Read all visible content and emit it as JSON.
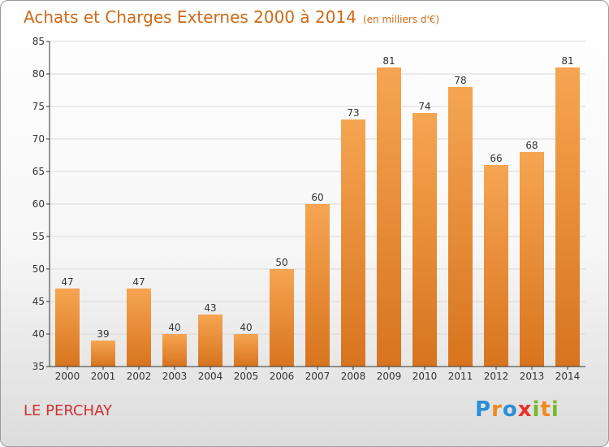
{
  "title": "Achats et Charges Externes 2000 à 2014",
  "unit": "(en milliers d'€)",
  "place": "LE PERCHAY",
  "logo": {
    "letters": [
      "P",
      "r",
      "o",
      "x",
      "i",
      "t",
      "i"
    ],
    "colors": [
      "#2a8fd6",
      "#f08a1e",
      "#2a8fd6",
      "#e8332a",
      "#7ab82b",
      "#f08a1e",
      "#7ab82b"
    ]
  },
  "colors": {
    "bar_top": "#f6a552",
    "bar_bottom": "#d8741e",
    "axis": "#333333",
    "grid": "#d8d8d8"
  },
  "chart_data": {
    "type": "bar",
    "title": "Achats et Charges Externes 2000 à 2014",
    "categories": [
      "2000",
      "2001",
      "2002",
      "2003",
      "2004",
      "2005",
      "2006",
      "2007",
      "2008",
      "2009",
      "2010",
      "2011",
      "2012",
      "2013",
      "2014"
    ],
    "values": [
      47,
      39,
      47,
      40,
      43,
      40,
      50,
      60,
      73,
      81,
      74,
      78,
      66,
      68,
      81
    ],
    "ylim": [
      35,
      85
    ],
    "yticks": [
      35,
      40,
      45,
      50,
      55,
      60,
      65,
      70,
      75,
      80,
      85
    ],
    "grid": true
  }
}
